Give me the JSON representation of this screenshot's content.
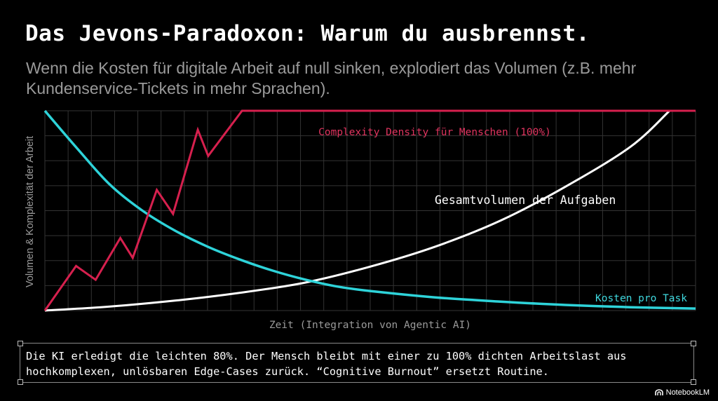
{
  "title": "Das Jevons-Paradoxon: Warum du ausbrennst.",
  "subtitle": "Wenn die Kosten für digitale Arbeit auf null sinken, explodiert das Volumen (z.B. mehr Kundenservice-Tickets in mehr Sprachen).",
  "note": {
    "text": "Die KI erledigt die leichten 80%. Der Mensch bleibt mit einer zu 100% dichten Arbeitslast aus hochkomplexen, unlösbaren Edge-Cases zurück. “Cognitive Burnout” ersetzt Routine."
  },
  "brand": {
    "label": "NotebookLM",
    "icon": "notebooklm-logo-icon"
  },
  "chart_data": {
    "type": "line",
    "xlabel": "Zeit (Integration von Agentic AI)",
    "ylabel": "Volumen & Komplexität der Arbeit",
    "xlim": [
      0,
      100
    ],
    "ylim": [
      0,
      100
    ],
    "grid": true,
    "legend": "none",
    "series": [
      {
        "name": "Complexity Density für Menschen (100%)",
        "color": "#d6204e",
        "x": [
          0,
          4.8,
          7.8,
          11.6,
          13.5,
          17.2,
          19.7,
          23.5,
          25.1,
          30.3,
          33.4,
          38.8,
          100
        ],
        "y": [
          0,
          22.3,
          15.4,
          36.3,
          26.4,
          60.4,
          48.4,
          90.5,
          77.4,
          100,
          100,
          100,
          100
        ]
      },
      {
        "name": "Gesamtvolumen der Aufgaben",
        "color": "#ffffff",
        "x": [
          0,
          10,
          20,
          30,
          40,
          50,
          60,
          70,
          80,
          90,
          96
        ],
        "y": [
          0,
          2,
          5,
          8.9,
          14,
          22,
          32,
          45,
          62,
          82,
          100
        ]
      },
      {
        "name": "Kosten pro Task",
        "color": "#2ed3d9",
        "x": [
          0,
          5,
          10,
          15,
          20,
          25,
          30,
          35,
          40,
          45,
          50,
          60,
          70,
          80,
          90,
          100
        ],
        "y": [
          100,
          81,
          63,
          50,
          40,
          32,
          25.5,
          20,
          15.5,
          12,
          9.8,
          6.6,
          4.5,
          2.8,
          1.7,
          1
        ]
      }
    ]
  }
}
